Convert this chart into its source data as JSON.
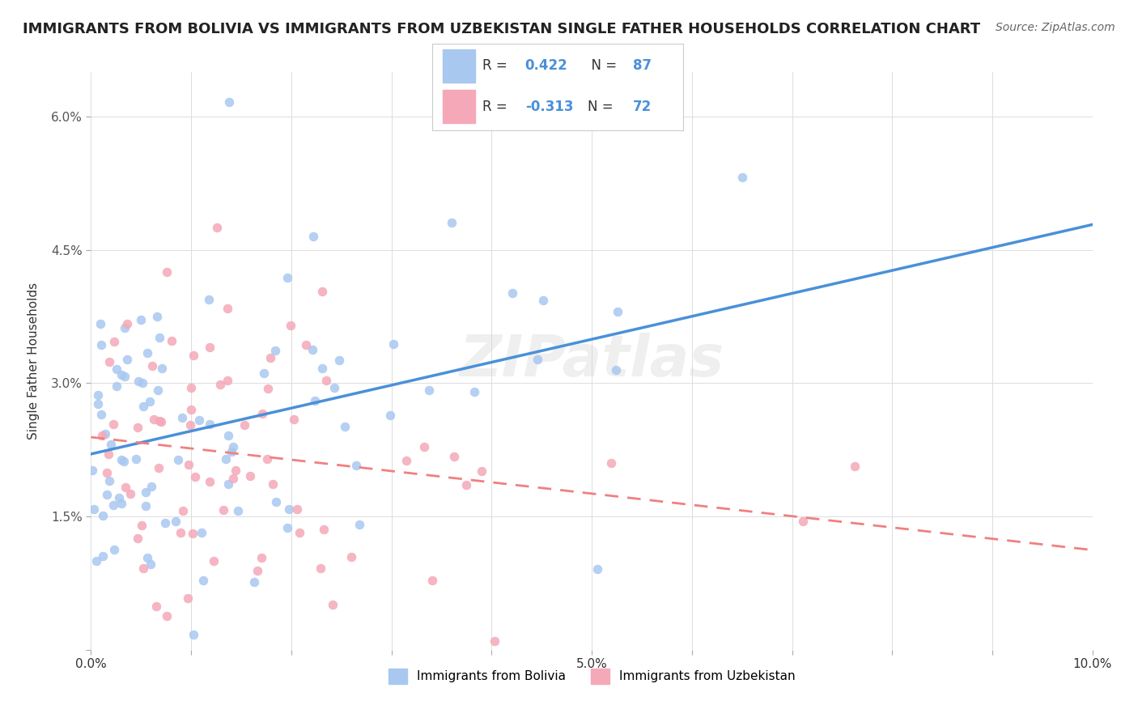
{
  "title": "IMMIGRANTS FROM BOLIVIA VS IMMIGRANTS FROM UZBEKISTAN SINGLE FATHER HOUSEHOLDS CORRELATION CHART",
  "source": "Source: ZipAtlas.com",
  "ylabel": "Single Father Households",
  "xlabel": "",
  "xlim": [
    0.0,
    0.1
  ],
  "ylim": [
    0.0,
    0.065
  ],
  "xticks": [
    0.0,
    0.01,
    0.02,
    0.03,
    0.04,
    0.05,
    0.06,
    0.07,
    0.08,
    0.09,
    0.1
  ],
  "xticklabels": [
    "0.0%",
    "",
    "",
    "",
    "",
    "5.0%",
    "",
    "",
    "",
    "",
    "10.0%"
  ],
  "yticks": [
    0.0,
    0.015,
    0.03,
    0.045,
    0.06
  ],
  "yticklabels": [
    "",
    "1.5%",
    "3.0%",
    "4.5%",
    "6.0%"
  ],
  "bolivia_color": "#a8c8f0",
  "uzbekistan_color": "#f5a8b8",
  "bolivia_line_color": "#4a90d9",
  "uzbekistan_line_color": "#f08080",
  "bolivia_R": 0.422,
  "bolivia_N": 87,
  "uzbekistan_R": -0.313,
  "uzbekistan_N": 72,
  "bolivia_seed": 42,
  "uzbekistan_seed": 123,
  "background_color": "#ffffff",
  "watermark": "ZIPatlas",
  "legend_box_color": "#e8f0fe",
  "legend_box_color2": "#fde8ee"
}
